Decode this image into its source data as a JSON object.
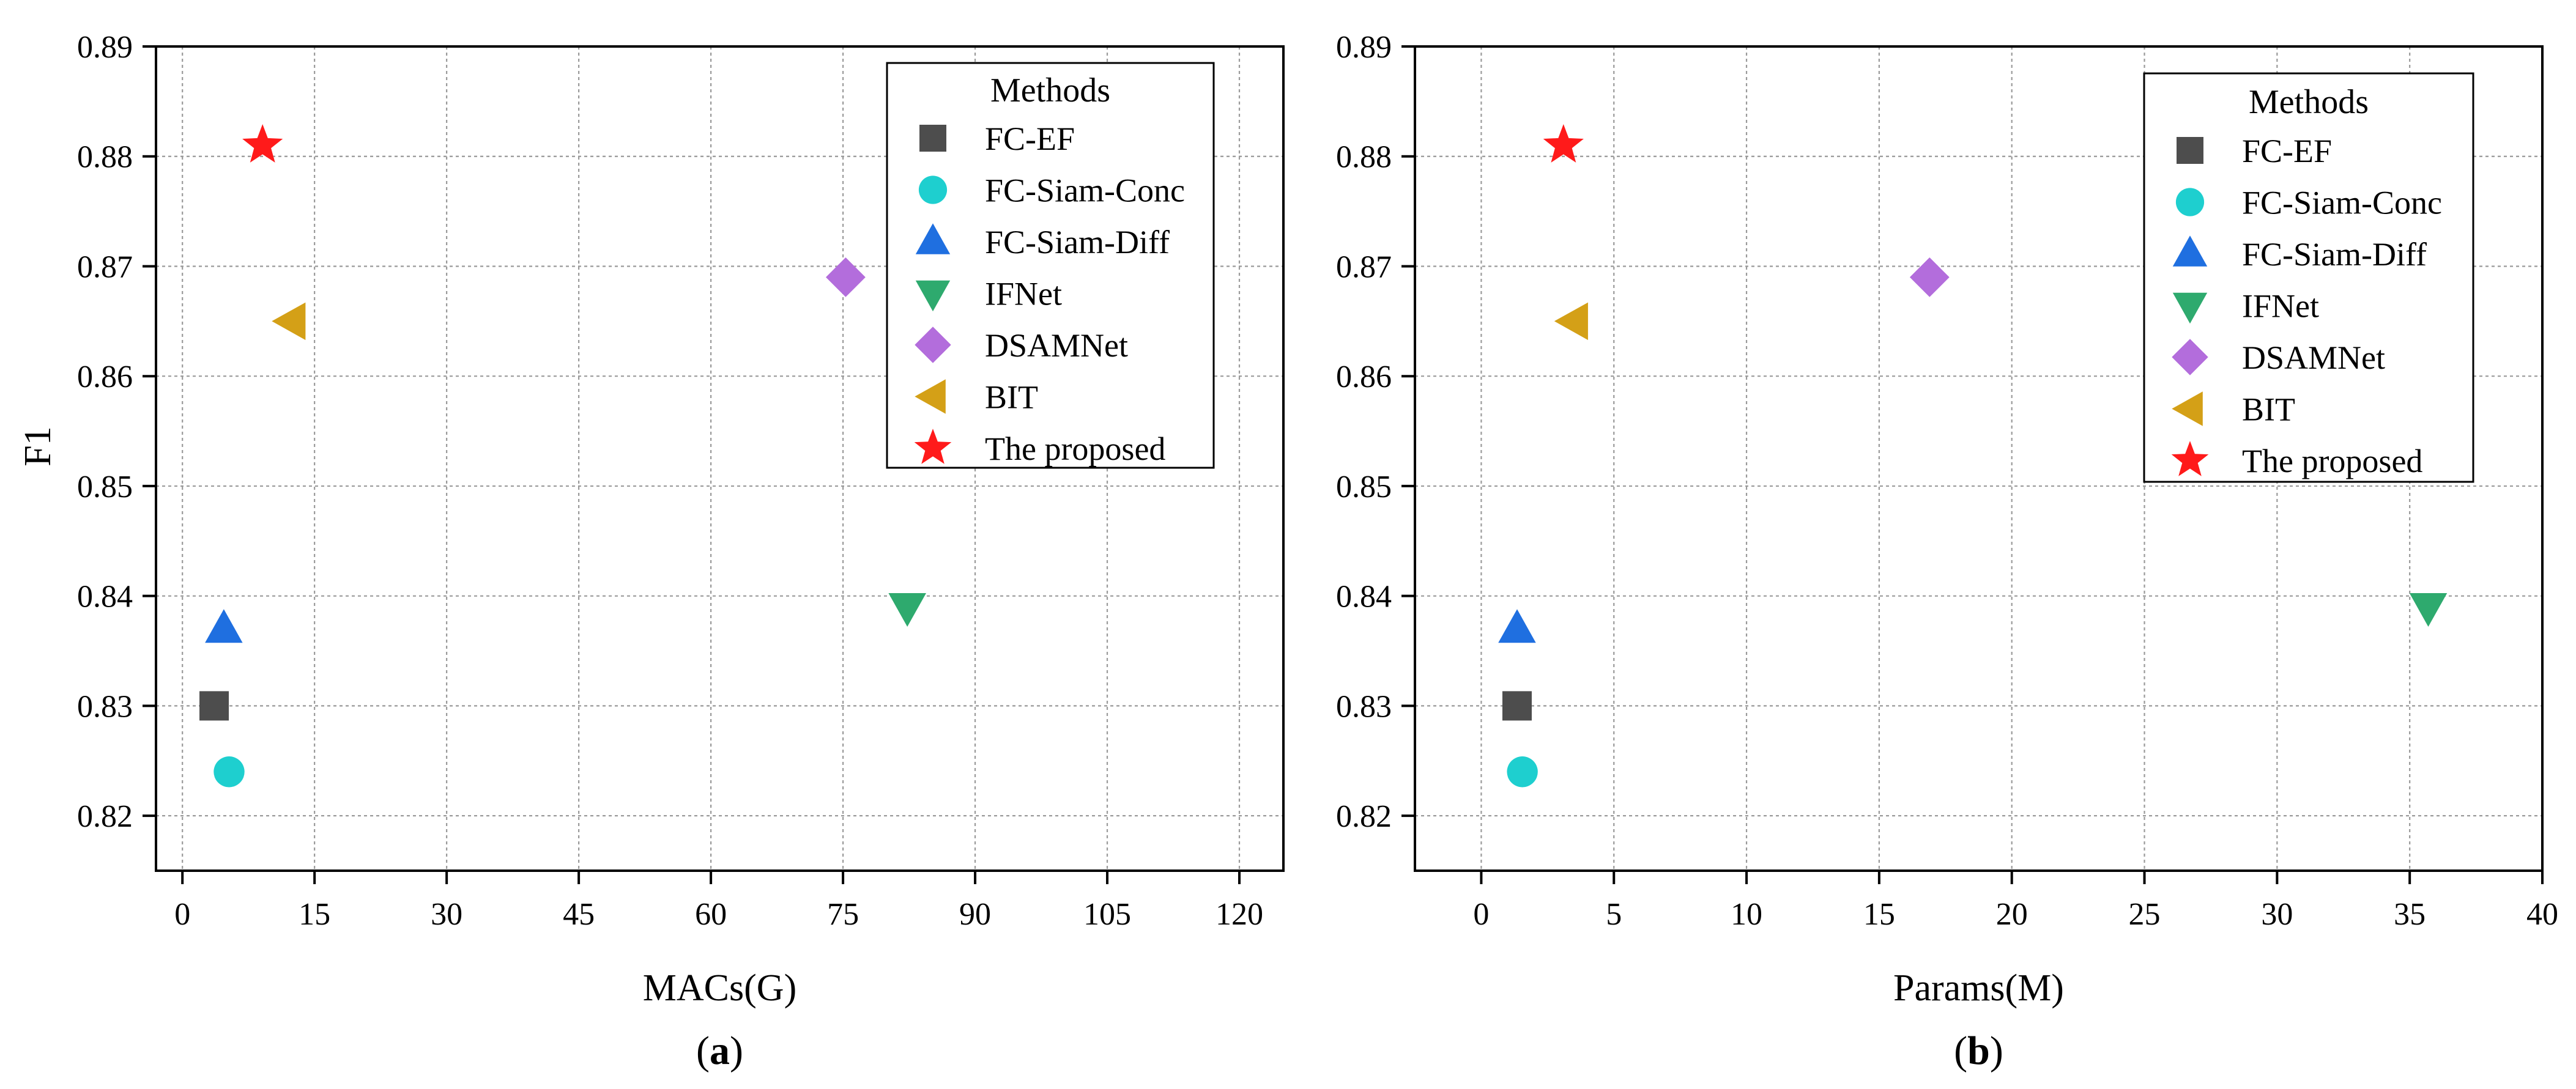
{
  "chart_data": [
    {
      "type": "scatter",
      "panel": "(a)",
      "panel_letter": "a",
      "xlabel": "MACs(G)",
      "ylabel": "F1",
      "xlim": [
        -3,
        125
      ],
      "ylim": [
        0.815,
        0.89
      ],
      "xticks": [
        0,
        15,
        30,
        45,
        60,
        75,
        90,
        105,
        120
      ],
      "yticks": [
        0.82,
        0.83,
        0.84,
        0.85,
        0.86,
        0.87,
        0.88,
        0.89
      ],
      "grid": true,
      "legend_title": "Methods",
      "legend_position": "top-right",
      "series": [
        {
          "name": "FC-EF",
          "marker": "square",
          "color": "#4d4d4d",
          "x": 3.6,
          "y": 0.83
        },
        {
          "name": "FC-Siam-Conc",
          "marker": "circle",
          "color": "#1ecfcf",
          "x": 5.3,
          "y": 0.824
        },
        {
          "name": "FC-Siam-Diff",
          "marker": "triangle-up",
          "color": "#1f6fe0",
          "x": 4.7,
          "y": 0.837
        },
        {
          "name": "IFNet",
          "marker": "triangle-down",
          "color": "#2eaa6e",
          "x": 82.3,
          "y": 0.839
        },
        {
          "name": "DSAMNet",
          "marker": "diamond",
          "color": "#b36ddc",
          "x": 75.3,
          "y": 0.869
        },
        {
          "name": "BIT",
          "marker": "triangle-left",
          "color": "#d4a017",
          "x": 12.4,
          "y": 0.865
        },
        {
          "name": "The proposed",
          "marker": "star",
          "color": "#ff1a1a",
          "x": 9.1,
          "y": 0.881
        }
      ]
    },
    {
      "type": "scatter",
      "panel": "(b)",
      "panel_letter": "b",
      "xlabel": "Params(M)",
      "ylabel": "",
      "xlim": [
        -2.5,
        40
      ],
      "ylim": [
        0.815,
        0.89
      ],
      "xticks": [
        0,
        5,
        10,
        15,
        20,
        25,
        30,
        35,
        40
      ],
      "yticks": [
        0.82,
        0.83,
        0.84,
        0.85,
        0.86,
        0.87,
        0.88,
        0.89
      ],
      "grid": true,
      "legend_title": "Methods",
      "legend_position": "top-right",
      "series": [
        {
          "name": "FC-EF",
          "marker": "square",
          "color": "#4d4d4d",
          "x": 1.35,
          "y": 0.83
        },
        {
          "name": "FC-Siam-Conc",
          "marker": "circle",
          "color": "#1ecfcf",
          "x": 1.55,
          "y": 0.824
        },
        {
          "name": "FC-Siam-Diff",
          "marker": "triangle-up",
          "color": "#1f6fe0",
          "x": 1.35,
          "y": 0.837
        },
        {
          "name": "IFNet",
          "marker": "triangle-down",
          "color": "#2eaa6e",
          "x": 35.7,
          "y": 0.839
        },
        {
          "name": "DSAMNet",
          "marker": "diamond",
          "color": "#b36ddc",
          "x": 16.9,
          "y": 0.869
        },
        {
          "name": "BIT",
          "marker": "triangle-left",
          "color": "#d4a017",
          "x": 3.5,
          "y": 0.865
        },
        {
          "name": "The proposed",
          "marker": "star",
          "color": "#ff1a1a",
          "x": 3.1,
          "y": 0.881
        }
      ]
    }
  ]
}
